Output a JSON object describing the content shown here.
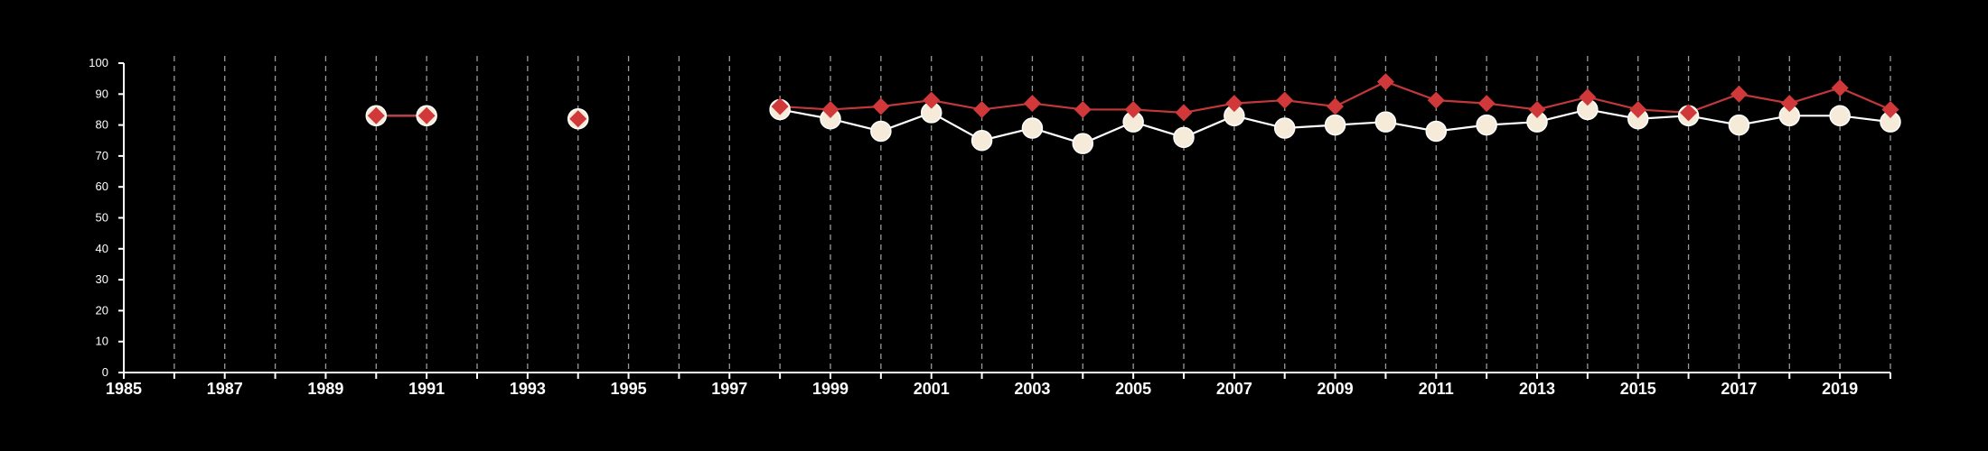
{
  "chart_data": {
    "type": "line",
    "title": "",
    "xlabel": "",
    "ylabel": "",
    "xlim": [
      1985,
      2020
    ],
    "ylim": [
      0,
      100
    ],
    "y_ticks": [
      0,
      10,
      20,
      30,
      40,
      50,
      60,
      70,
      80,
      90,
      100
    ],
    "x_tick_labels": [
      "1985",
      "1987",
      "1989",
      "1991",
      "1993",
      "1995",
      "1997",
      "1999",
      "2001",
      "2003",
      "2005",
      "2007",
      "2009",
      "2011",
      "2013",
      "2015",
      "2017",
      "2019"
    ],
    "grid": "vertical dashed lines at each year",
    "series": [
      {
        "marker": "circle",
        "color": "#f6ead8",
        "line_color": "#ffffff",
        "points": [
          [
            1990,
            83
          ],
          [
            1991,
            83
          ],
          [
            1994,
            82
          ],
          [
            1998,
            85
          ],
          [
            1999,
            82
          ],
          [
            2000,
            78
          ],
          [
            2001,
            84
          ],
          [
            2002,
            75
          ],
          [
            2003,
            79
          ],
          [
            2004,
            74
          ],
          [
            2005,
            81
          ],
          [
            2006,
            76
          ],
          [
            2007,
            83
          ],
          [
            2008,
            79
          ],
          [
            2009,
            80
          ],
          [
            2010,
            81
          ],
          [
            2011,
            78
          ],
          [
            2012,
            80
          ],
          [
            2013,
            81
          ],
          [
            2014,
            85
          ],
          [
            2015,
            82
          ],
          [
            2016,
            83
          ],
          [
            2017,
            80
          ],
          [
            2018,
            83
          ],
          [
            2019,
            83
          ],
          [
            2020,
            81
          ]
        ]
      },
      {
        "marker": "diamond",
        "color": "#d0383a",
        "line_color": "#c0383a",
        "points": [
          [
            1990,
            83
          ],
          [
            1991,
            83
          ],
          [
            1994,
            82
          ],
          [
            1998,
            86
          ],
          [
            1999,
            85
          ],
          [
            2000,
            86
          ],
          [
            2001,
            88
          ],
          [
            2002,
            85
          ],
          [
            2003,
            87
          ],
          [
            2004,
            85
          ],
          [
            2005,
            85
          ],
          [
            2006,
            84
          ],
          [
            2007,
            87
          ],
          [
            2008,
            88
          ],
          [
            2009,
            86
          ],
          [
            2010,
            94
          ],
          [
            2011,
            88
          ],
          [
            2012,
            87
          ],
          [
            2013,
            85
          ],
          [
            2014,
            89
          ],
          [
            2015,
            85
          ],
          [
            2016,
            84
          ],
          [
            2017,
            90
          ],
          [
            2018,
            87
          ],
          [
            2019,
            92
          ],
          [
            2020,
            85
          ]
        ]
      }
    ]
  }
}
